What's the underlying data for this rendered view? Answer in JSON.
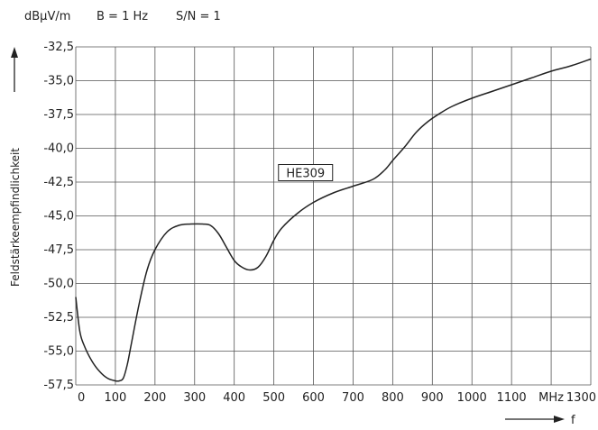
{
  "chart_data": {
    "type": "line",
    "header_unit": "dBµV/m",
    "header_params": [
      "B = 1 Hz",
      "S/N = 1"
    ],
    "ylabel": "Feldstärkeempfindlichkeit",
    "xlabel": "f",
    "x_unit_label": "MHz",
    "ylim": [
      -57.5,
      -32.5
    ],
    "xlim": [
      0,
      1300
    ],
    "yticks": [
      "-32,5",
      "-35,0",
      "-37,5",
      "-40,0",
      "-42,5",
      "-45,0",
      "-47,5",
      "-50,0",
      "-52,5",
      "-55,0",
      "-57,5"
    ],
    "xticks": [
      "0",
      "100",
      "200",
      "300",
      "400",
      "500",
      "600",
      "700",
      "800",
      "900",
      "1000",
      "1100",
      "MHz",
      "1300"
    ],
    "grid": true,
    "series": [
      {
        "name": "HE309",
        "x": [
          0,
          10,
          20,
          40,
          60,
          80,
          100,
          110,
          120,
          130,
          140,
          160,
          180,
          200,
          230,
          260,
          290,
          320,
          340,
          360,
          380,
          400,
          420,
          440,
          460,
          480,
          500,
          520,
          560,
          600,
          650,
          700,
          750,
          780,
          800,
          830,
          860,
          890,
          920,
          950,
          1000,
          1050,
          1100,
          1150,
          1200,
          1250,
          1300
        ],
        "y": [
          -51.0,
          -53.5,
          -54.5,
          -55.7,
          -56.5,
          -57.0,
          -57.2,
          -57.2,
          -57.0,
          -56.0,
          -54.5,
          -51.5,
          -49.0,
          -47.5,
          -46.2,
          -45.7,
          -45.6,
          -45.6,
          -45.7,
          -46.3,
          -47.3,
          -48.3,
          -48.8,
          -49.0,
          -48.8,
          -48.0,
          -46.8,
          -45.9,
          -44.8,
          -44.0,
          -43.3,
          -42.8,
          -42.3,
          -41.6,
          -40.9,
          -39.9,
          -38.8,
          -38.0,
          -37.4,
          -36.9,
          -36.3,
          -35.8,
          -35.3,
          -34.8,
          -34.3,
          -33.9,
          -33.4
        ]
      }
    ],
    "annotations": [
      "HE309"
    ]
  }
}
